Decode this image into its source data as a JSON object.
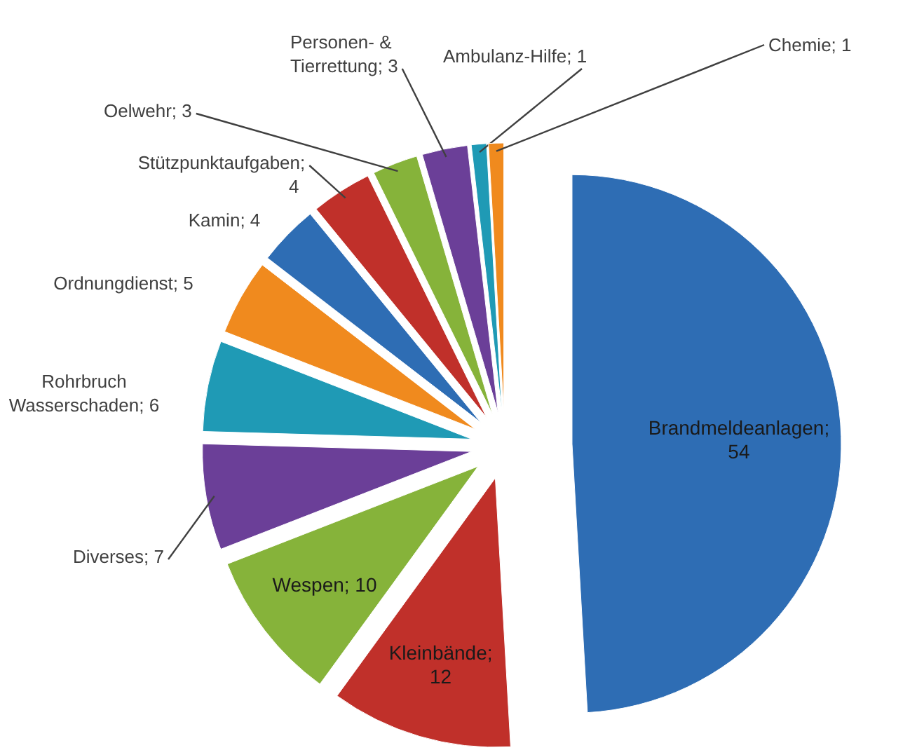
{
  "chart_data": {
    "type": "pie",
    "categories": [
      "Brandmeldeanlagen",
      "Kleinbände",
      "Wespen",
      "Diverses",
      "Rohrbruch Wasserschaden",
      "Ordnungdienst",
      "Kamin",
      "Stützpunktaufgaben",
      "Oelwehr",
      "Personen- & Tierrettung",
      "Ambulanz-Hilfe",
      "Chemie"
    ],
    "values": [
      54,
      12,
      10,
      7,
      6,
      5,
      4,
      4,
      3,
      3,
      1,
      1
    ],
    "colors": [
      "#2e6db4",
      "#c0302a",
      "#86b33a",
      "#6b3f98",
      "#1f9ab5",
      "#f08a1e",
      "#2e6db4",
      "#c0302a",
      "#86b33a",
      "#6b3f98",
      "#1f9ab5",
      "#f08a1e"
    ],
    "value_labels": [
      "; 54",
      "; 12",
      "; 10",
      "; 7",
      "; 6",
      "; 5",
      "; 4",
      "; 4",
      "; 3",
      "; 3",
      "; 1",
      "; 1"
    ]
  }
}
